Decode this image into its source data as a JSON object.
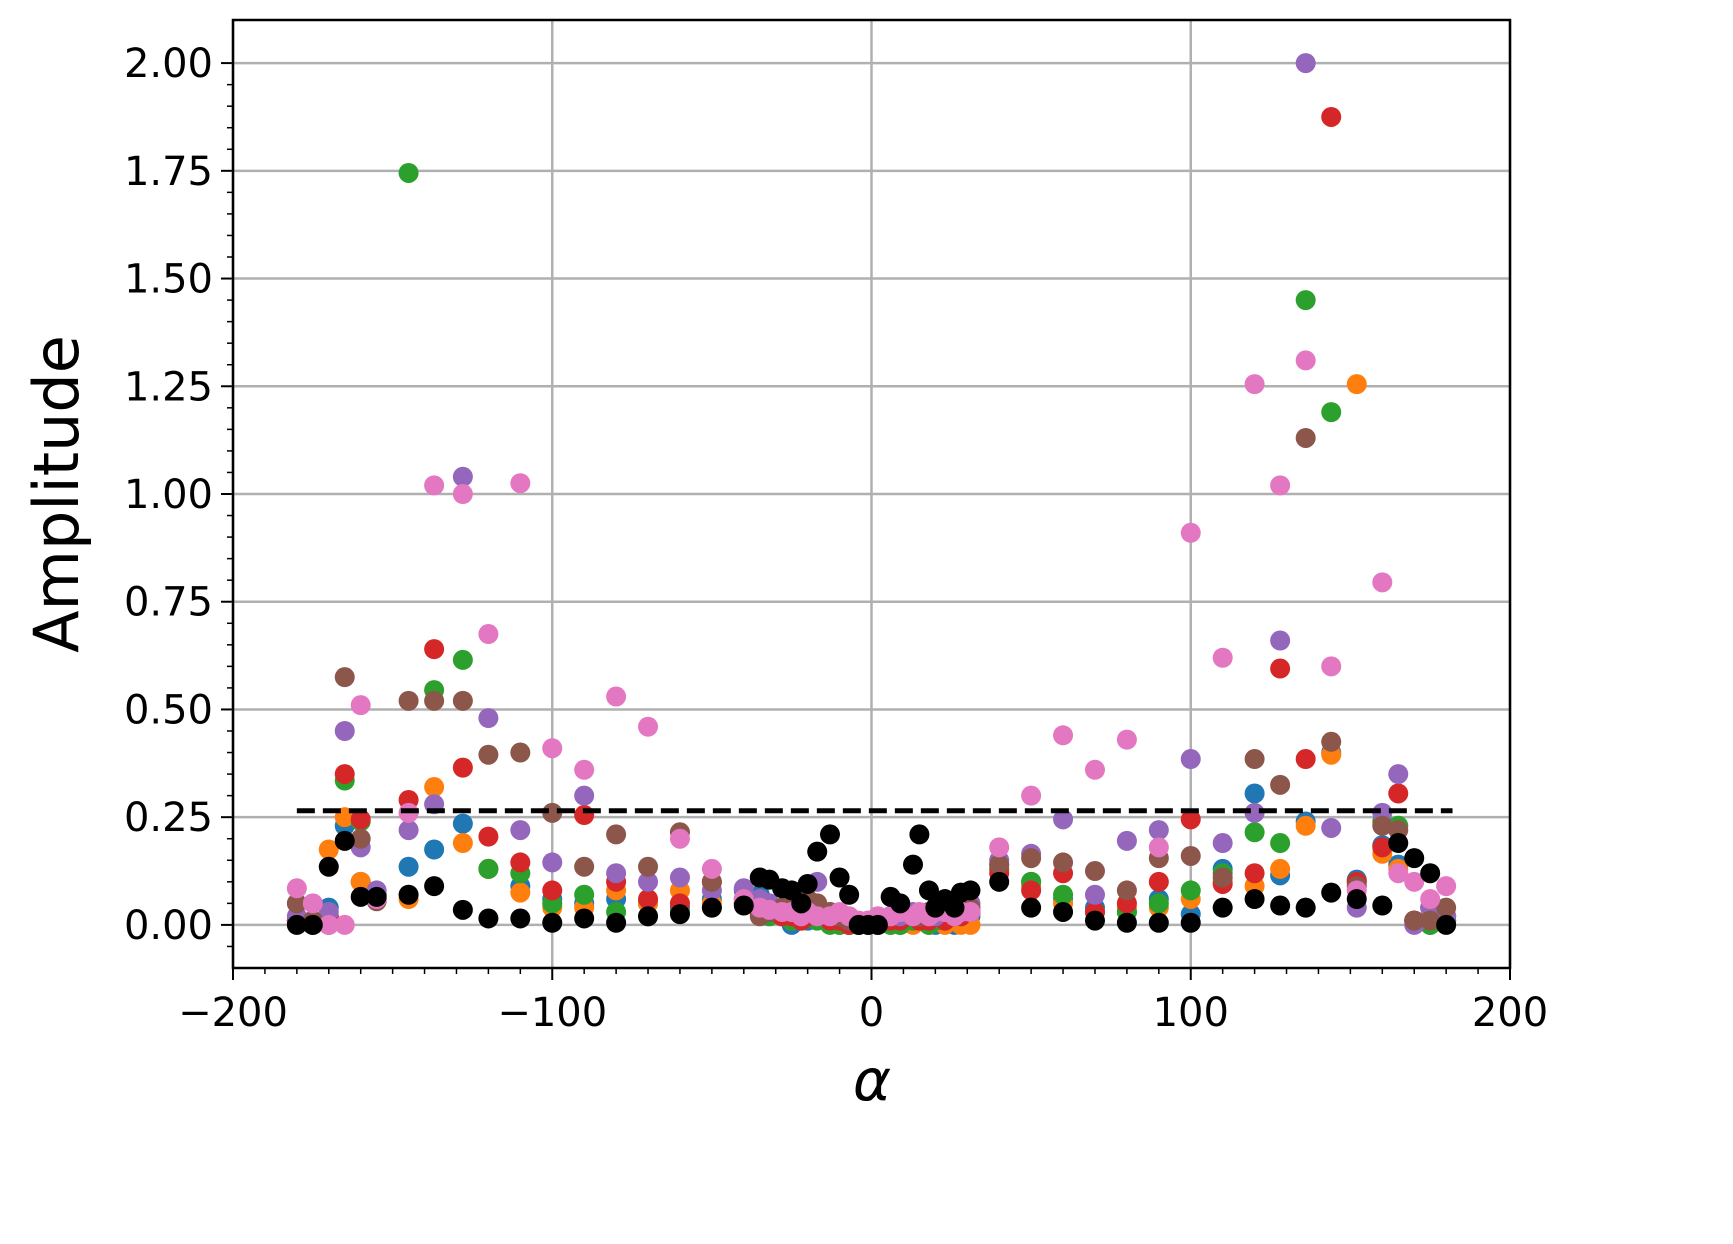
{
  "chart_data": {
    "type": "scatter",
    "x_label": "α",
    "y_label": "Amplitude",
    "xlim": [
      -200,
      200
    ],
    "ylim": [
      -0.1,
      2.1
    ],
    "xticks": [
      {
        "value": -200,
        "label": "−200"
      },
      {
        "value": -100,
        "label": "−100"
      },
      0,
      100,
      200
    ],
    "yticks": [
      {
        "value": 0,
        "label": "0.00"
      },
      {
        "value": 0.25,
        "label": "0.25"
      },
      {
        "value": 0.5,
        "label": "0.50"
      },
      {
        "value": 0.75,
        "label": "0.75"
      },
      {
        "value": 1,
        "label": "1.00"
      },
      {
        "value": 1.25,
        "label": "1.25"
      },
      {
        "value": 1.5,
        "label": "1.50"
      },
      {
        "value": 1.75,
        "label": "1.75"
      },
      {
        "value": 2,
        "label": "2.00"
      }
    ],
    "grid": true,
    "threshold": {
      "value": 0.265,
      "x": [
        -180,
        182
      ],
      "color": "#000000"
    },
    "x": [
      -180,
      -175,
      -170,
      -165,
      -160,
      -155,
      -145,
      -137,
      -128,
      -120,
      -110,
      -100,
      -90,
      -80,
      -70,
      -60,
      -50,
      -40,
      -35,
      -32,
      -28,
      -25,
      -22,
      -20,
      -17,
      -13,
      -10,
      -7,
      -4,
      -1,
      2,
      6,
      9,
      13,
      15,
      18,
      20,
      23,
      26,
      28,
      31,
      40,
      50,
      60,
      70,
      80,
      90,
      100,
      110,
      120,
      128,
      136,
      144,
      152,
      160,
      165,
      170,
      175,
      180
    ],
    "series": [
      {
        "color": "#1f77b4",
        "values": [
          0.01,
          0.0,
          0.04,
          0.23,
          0.1,
          0.07,
          0.135,
          0.175,
          0.235,
          0.13,
          0.09,
          0.06,
          0.05,
          0.06,
          0.05,
          0.04,
          0.06,
          0.08,
          0.07,
          0.05,
          0.03,
          0.0,
          0.02,
          0.01,
          0.03,
          0.02,
          0.01,
          0.0,
          0.0,
          0.0,
          0.0,
          0.01,
          0.0,
          0.01,
          0.02,
          0.01,
          0.0,
          0.01,
          0.0,
          0.01,
          0.02,
          0.14,
          0.1,
          0.06,
          0.04,
          0.03,
          0.06,
          0.025,
          0.13,
          0.305,
          0.115,
          0.24,
          0.4,
          0.105,
          0.185,
          0.14,
          0.01,
          0.0,
          0.01
        ]
      },
      {
        "color": "#ff7f0e",
        "values": [
          0.01,
          0.0,
          0.175,
          0.25,
          0.1,
          0.06,
          0.06,
          0.32,
          0.19,
          0.13,
          0.075,
          0.04,
          0.04,
          0.08,
          0.05,
          0.08,
          0.05,
          0.06,
          0.04,
          0.03,
          0.02,
          0.01,
          0.02,
          0.03,
          0.02,
          0.01,
          0.0,
          0.01,
          0.0,
          0.0,
          0.0,
          0.0,
          0.01,
          0.0,
          0.01,
          0.0,
          0.01,
          0.0,
          0.01,
          0.0,
          0.0,
          0.13,
          0.09,
          0.05,
          0.03,
          0.04,
          0.04,
          0.06,
          0.1,
          0.09,
          0.13,
          0.23,
          0.395,
          1.255,
          0.165,
          0.13,
          0.01,
          0.02,
          0.02
        ]
      },
      {
        "color": "#2ca02c",
        "values": [
          0.01,
          0.0,
          0.02,
          0.335,
          0.24,
          0.07,
          1.745,
          0.545,
          0.615,
          0.13,
          0.12,
          0.05,
          0.07,
          0.03,
          0.02,
          0.03,
          0.04,
          0.05,
          0.03,
          0.02,
          0.02,
          0.01,
          0.01,
          0.02,
          0.01,
          0.0,
          0.0,
          0.0,
          0.0,
          0.0,
          0.0,
          0.0,
          0.0,
          0.01,
          0.01,
          0.0,
          0.01,
          0.01,
          0.02,
          0.02,
          0.03,
          0.13,
          0.1,
          0.07,
          0.03,
          0.03,
          0.05,
          0.08,
          0.12,
          0.215,
          0.19,
          1.45,
          1.19,
          0.1,
          0.24,
          0.23,
          0.01,
          0.0,
          0.01
        ]
      },
      {
        "color": "#d62728",
        "values": [
          0.01,
          0.0,
          0.02,
          0.35,
          0.245,
          0.06,
          0.29,
          0.64,
          0.365,
          0.205,
          0.145,
          0.08,
          0.255,
          0.1,
          0.06,
          0.05,
          0.1,
          0.05,
          0.04,
          0.03,
          0.02,
          0.02,
          0.01,
          0.02,
          0.03,
          0.01,
          0.01,
          0.0,
          0.0,
          0.0,
          0.0,
          0.01,
          0.01,
          0.02,
          0.01,
          0.01,
          0.02,
          0.01,
          0.02,
          0.02,
          0.03,
          0.12,
          0.08,
          0.12,
          0.03,
          0.05,
          0.1,
          0.245,
          0.095,
          0.12,
          0.595,
          0.385,
          1.875,
          0.1,
          0.18,
          0.305,
          0.01,
          0.04,
          0.02
        ]
      },
      {
        "color": "#9467bd",
        "values": [
          0.02,
          0.01,
          0.03,
          0.45,
          0.18,
          0.08,
          0.22,
          0.28,
          1.04,
          0.48,
          0.22,
          0.145,
          0.3,
          0.12,
          0.1,
          0.11,
          0.08,
          0.085,
          0.06,
          0.05,
          0.04,
          0.03,
          0.02,
          0.03,
          0.1,
          0.03,
          0.02,
          0.01,
          0.0,
          0.01,
          0.01,
          0.02,
          0.02,
          0.03,
          0.02,
          0.03,
          0.02,
          0.03,
          0.04,
          0.04,
          0.05,
          0.15,
          0.165,
          0.245,
          0.07,
          0.195,
          0.22,
          0.385,
          0.19,
          0.26,
          0.66,
          2.0,
          0.225,
          0.04,
          0.26,
          0.35,
          0.0,
          0.04,
          0.02
        ]
      },
      {
        "color": "#8c564b",
        "values": [
          0.05,
          0.01,
          0.0,
          0.575,
          0.2,
          0.055,
          0.52,
          0.52,
          0.52,
          0.395,
          0.4,
          0.26,
          0.135,
          0.21,
          0.135,
          0.215,
          0.1,
          0.06,
          0.02,
          0.03,
          0.04,
          0.05,
          0.04,
          0.06,
          0.05,
          0.03,
          0.02,
          0.01,
          0.0,
          0.0,
          0.01,
          0.02,
          0.03,
          0.02,
          0.02,
          0.03,
          0.04,
          0.03,
          0.02,
          0.03,
          0.04,
          0.14,
          0.155,
          0.145,
          0.125,
          0.08,
          0.155,
          0.16,
          0.11,
          0.385,
          0.325,
          1.13,
          0.425,
          0.09,
          0.23,
          0.22,
          0.01,
          0.01,
          0.04
        ]
      },
      {
        "color": "#e377c2",
        "values": [
          0.085,
          0.05,
          0.0,
          0.0,
          0.51,
          0.06,
          0.26,
          1.02,
          1.0,
          0.675,
          1.025,
          0.41,
          0.36,
          0.53,
          0.46,
          0.2,
          0.13,
          0.06,
          0.04,
          0.035,
          0.03,
          0.03,
          0.02,
          0.03,
          0.02,
          0.02,
          0.03,
          0.02,
          0.01,
          0.01,
          0.02,
          0.02,
          0.03,
          0.02,
          0.03,
          0.02,
          0.03,
          0.03,
          0.02,
          0.03,
          0.03,
          0.18,
          0.3,
          0.44,
          0.36,
          0.43,
          0.18,
          0.91,
          0.62,
          1.255,
          1.02,
          1.31,
          0.6,
          0.08,
          0.795,
          0.12,
          0.1,
          0.06,
          0.09
        ]
      },
      {
        "color": "#000000",
        "values": [
          0.0,
          0.0,
          0.135,
          0.195,
          0.065,
          0.065,
          0.07,
          0.09,
          0.035,
          0.015,
          0.015,
          0.005,
          0.015,
          0.005,
          0.02,
          0.025,
          0.04,
          0.045,
          0.11,
          0.105,
          0.085,
          0.08,
          0.05,
          0.095,
          0.17,
          0.21,
          0.11,
          0.07,
          0.0,
          0.0,
          0.0,
          0.065,
          0.05,
          0.14,
          0.21,
          0.08,
          0.04,
          0.06,
          0.04,
          0.075,
          0.08,
          0.1,
          0.04,
          0.03,
          0.01,
          0.005,
          0.005,
          0.005,
          0.04,
          0.06,
          0.045,
          0.04,
          0.075,
          0.06,
          0.045,
          0.19,
          0.155,
          0.12,
          0.0
        ]
      }
    ]
  }
}
